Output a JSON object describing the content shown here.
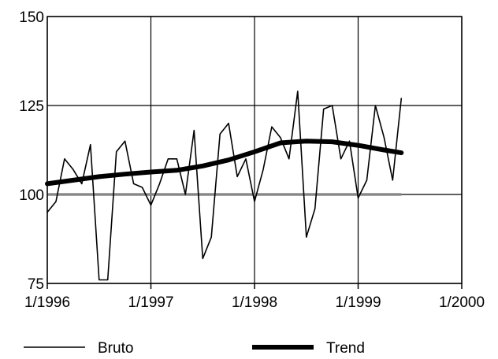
{
  "chart_data": {
    "type": "line",
    "title": "",
    "xlabel": "",
    "ylabel": "",
    "x_domain": [
      "1996-01",
      "2000-01"
    ],
    "ylim": [
      75,
      150
    ],
    "y_ticks": [
      "150",
      "125",
      "100",
      "75"
    ],
    "x_ticks": [
      {
        "date": "1996-01",
        "label": "1/1996"
      },
      {
        "date": "1997-01",
        "label": "1/1997"
      },
      {
        "date": "1998-01",
        "label": "1/1998"
      },
      {
        "date": "1999-01",
        "label": "1/1999"
      },
      {
        "date": "2000-01",
        "label": "1/2000"
      }
    ],
    "grid": true,
    "legend_position": "bottom",
    "reference_line": {
      "y": 100,
      "color": "#888888"
    },
    "series": [
      {
        "name": "Bruto",
        "color": "#000000",
        "x": [
          "1996-01",
          "1996-02",
          "1996-03",
          "1996-04",
          "1996-05",
          "1996-06",
          "1996-07",
          "1996-08",
          "1996-09",
          "1996-10",
          "1996-11",
          "1996-12",
          "1997-01",
          "1997-02",
          "1997-03",
          "1997-04",
          "1997-05",
          "1997-06",
          "1997-07",
          "1997-08",
          "1997-09",
          "1997-10",
          "1997-11",
          "1997-12",
          "1998-01",
          "1998-02",
          "1998-03",
          "1998-04",
          "1998-05",
          "1998-06",
          "1998-07",
          "1998-08",
          "1998-09",
          "1998-10",
          "1998-11",
          "1998-12",
          "1999-01",
          "1999-02",
          "1999-03",
          "1999-04",
          "1999-05",
          "1999-06"
        ],
        "values": [
          95,
          98,
          110,
          107,
          103,
          114,
          76,
          76,
          112,
          115,
          103,
          102,
          97,
          103,
          110,
          110,
          100,
          118,
          82,
          88,
          117,
          120,
          105,
          110,
          98,
          107,
          119,
          116,
          110,
          129,
          88,
          96,
          124,
          125,
          110,
          115,
          99,
          104,
          125,
          116,
          104,
          127
        ]
      },
      {
        "name": "Trend",
        "color": "#000000",
        "x": [
          "1996-01",
          "1996-04",
          "1996-07",
          "1996-10",
          "1997-01",
          "1997-04",
          "1997-07",
          "1997-10",
          "1998-01",
          "1998-04",
          "1998-07",
          "1998-10",
          "1999-01",
          "1999-04",
          "1999-06"
        ],
        "values": [
          103,
          104,
          105,
          105.7,
          106.3,
          106.8,
          108,
          109.7,
          112,
          114.5,
          115,
          114.8,
          113.8,
          112.5,
          111.7
        ]
      }
    ]
  }
}
